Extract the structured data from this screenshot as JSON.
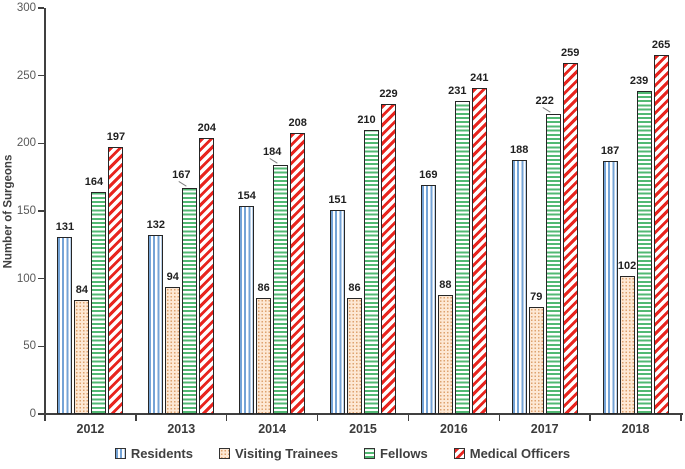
{
  "chart_data": {
    "type": "bar",
    "title": "",
    "xlabel": "",
    "ylabel": "Number of Surgeons",
    "ylim": [
      0,
      300
    ],
    "ytick_step": 50,
    "yticks": [
      "0",
      "50",
      "100",
      "150",
      "200",
      "250",
      "300"
    ],
    "categories": [
      "2012",
      "2013",
      "2014",
      "2015",
      "2016",
      "2017",
      "2018"
    ],
    "series": [
      {
        "name": "Residents",
        "pattern": "vertical-stripes",
        "color": "#74a3d6",
        "values": [
          131,
          132,
          154,
          151,
          169,
          188,
          187
        ]
      },
      {
        "name": "Visiting Trainees",
        "pattern": "dots",
        "color": "#dda26e",
        "fill": "#fde8d4",
        "values": [
          84,
          94,
          86,
          86,
          88,
          79,
          102
        ]
      },
      {
        "name": "Fellows",
        "pattern": "horizontal-stripes",
        "color": "#52b973",
        "values": [
          164,
          167,
          184,
          210,
          231,
          222,
          239
        ],
        "label_callouts": [
          false,
          true,
          true,
          false,
          false,
          true,
          false
        ]
      },
      {
        "name": "Medical Officers",
        "pattern": "diagonal-stripes",
        "color": "#e8251f",
        "values": [
          197,
          204,
          208,
          229,
          241,
          259,
          265
        ]
      }
    ],
    "legend_position": "bottom",
    "grid": false,
    "bar_outline": "#262626",
    "axis_color": "#404040",
    "tick_label_color": "#595959",
    "category_label_color": "#3b3b3b",
    "value_label_color": "#1f1f1f",
    "legend_text_color": "#404040",
    "leader_line_color": "#808080"
  }
}
